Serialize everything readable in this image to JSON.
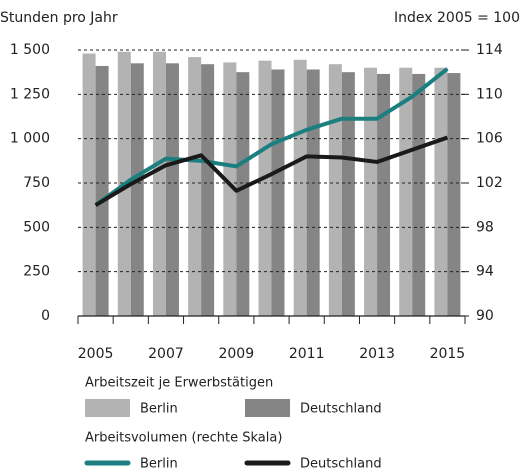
{
  "chart_data": {
    "type": "bar",
    "y_axis_label": "Stunden pro Jahr",
    "y2_axis_label": "Index 2005 = 100",
    "categories": [
      "2005",
      null,
      "2007",
      null,
      "2009",
      null,
      "2011",
      null,
      "2013",
      null,
      "2015"
    ],
    "ylim": [
      0,
      1500
    ],
    "yticks": [
      0,
      250,
      500,
      750,
      {
        "value": 1000,
        "label": "1 000"
      },
      {
        "value": 1250,
        "label": "1 250"
      },
      {
        "value": 1500,
        "label": "1 500"
      }
    ],
    "y2lim": [
      90,
      114
    ],
    "y2ticks": [
      90,
      94,
      98,
      102,
      106,
      110,
      114
    ],
    "grid": true,
    "bar_legend_title": "Arbeitszeit je Erwerbstätigen",
    "line_legend_title": "Arbeitsvolumen (rechte Skala)",
    "series": [
      {
        "name": "Berlin",
        "color": "#b3b3b3",
        "values": [
          1480,
          1490,
          1490,
          1460,
          1430,
          1440,
          1445,
          1420,
          1400,
          1400,
          1400
        ]
      },
      {
        "name": "Deutschland",
        "color": "#858585",
        "values": [
          1410,
          1425,
          1425,
          1420,
          1375,
          1390,
          1390,
          1375,
          1365,
          1365,
          1370
        ]
      },
      {
        "name": "Berlin",
        "color": "#1b7f80",
        "type": "line",
        "axis": "y2",
        "values": [
          100,
          102.3,
          104.2,
          104.0,
          103.5,
          105.5,
          106.8,
          107.8,
          107.8,
          109.8,
          112.3
        ]
      },
      {
        "name": "Deutschland",
        "color": "#1a1a1a",
        "type": "line",
        "axis": "y2",
        "values": [
          100,
          101.9,
          103.6,
          104.5,
          101.3,
          102.8,
          104.4,
          104.3,
          103.9,
          105.0,
          106.1
        ]
      }
    ]
  }
}
